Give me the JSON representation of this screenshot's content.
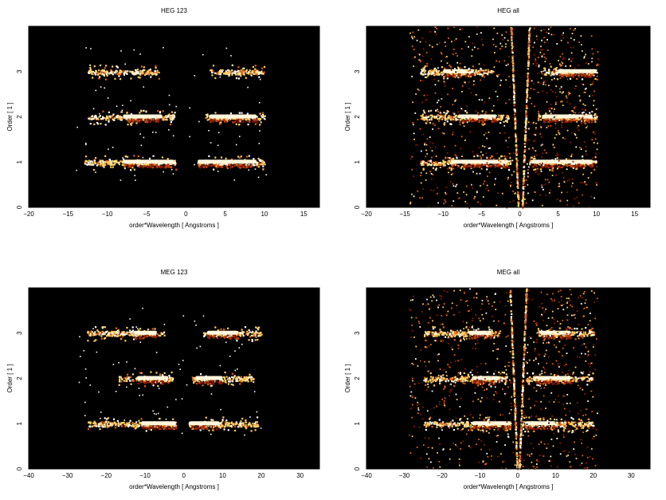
{
  "chart_data": [
    {
      "type": "heatmap",
      "title": "HEG 123",
      "xlabel": "order*Wavelength [ Angstroms ]",
      "ylabel": "Order [ 1 ]",
      "xlim": [
        -20,
        17
      ],
      "ylim": [
        0,
        4
      ],
      "xticks": [
        -20,
        -15,
        -10,
        -5,
        0,
        5,
        10,
        15
      ],
      "yticks": [
        0,
        1,
        2,
        3
      ],
      "colormap": [
        "#000000",
        "#8b1a00",
        "#e0601a",
        "#ffd060",
        "#ffffff"
      ],
      "bands": [
        {
          "order": 1,
          "segments": [
            [
              -13,
              -1.2
            ],
            [
              1.2,
              10
            ]
          ],
          "bright_core": [
            [
              -8,
              -1.5
            ],
            [
              1.5,
              9
            ]
          ]
        },
        {
          "order": 2,
          "segments": [
            [
              -12.5,
              -1.5
            ],
            [
              2.3,
              10
            ]
          ],
          "bright_core": [
            [
              -8,
              -3
            ],
            [
              3,
              9
            ]
          ]
        },
        {
          "order": 3,
          "segments": [
            [
              -12.5,
              -3.5
            ],
            [
              3,
              10
            ]
          ],
          "bright_core": []
        }
      ],
      "wedges": false
    },
    {
      "type": "heatmap",
      "title": "HEG all",
      "xlabel": "order*Wavelength [ Angstroms ]",
      "ylabel": "Order [ 1 ]",
      "xlim": [
        -20,
        17
      ],
      "ylim": [
        0,
        4
      ],
      "xticks": [
        -20,
        -15,
        -10,
        -5,
        0,
        5,
        10,
        15
      ],
      "yticks": [
        0,
        1,
        2,
        3
      ],
      "colormap": [
        "#000000",
        "#8b1a00",
        "#e0601a",
        "#ffd060",
        "#ffffff"
      ],
      "bands": [
        {
          "order": 1,
          "segments": [
            [
              -13,
              -1.2
            ],
            [
              1.2,
              10
            ]
          ],
          "bright_core": [
            [
              -9,
              -1.5
            ],
            [
              1.5,
              9.5
            ]
          ]
        },
        {
          "order": 2,
          "segments": [
            [
              -13,
              -1.5
            ],
            [
              2.3,
              10
            ]
          ],
          "bright_core": [
            [
              -8,
              -3
            ],
            [
              3,
              9.5
            ]
          ]
        },
        {
          "order": 3,
          "segments": [
            [
              -13,
              -3.5
            ],
            [
              3,
              10
            ]
          ],
          "bright_core": [
            [
              -10,
              -6
            ],
            [
              5,
              10
            ]
          ]
        }
      ],
      "wedges": true
    },
    {
      "type": "heatmap",
      "title": "MEG 123",
      "xlabel": "order*Wavelength [ Angstroms ]",
      "ylabel": "Order [ 1 ]",
      "xlim": [
        -40,
        35
      ],
      "ylim": [
        0,
        4
      ],
      "xticks": [
        -40,
        -30,
        -20,
        -10,
        0,
        10,
        20,
        30
      ],
      "yticks": [
        0,
        1,
        2,
        3
      ],
      "colormap": [
        "#000000",
        "#8b1a00",
        "#e0601a",
        "#ffd060",
        "#ffffff"
      ],
      "bands": [
        {
          "order": 1,
          "segments": [
            [
              -25,
              -2
            ],
            [
              1,
              19
            ]
          ],
          "bright_core": [
            [
              -11,
              -2
            ],
            [
              1.5,
              9
            ]
          ]
        },
        {
          "order": 2,
          "segments": [
            [
              -17,
              -3
            ],
            [
              2,
              18
            ]
          ],
          "bright_core": [
            [
              -12,
              -4
            ],
            [
              3,
              10
            ]
          ]
        },
        {
          "order": 3,
          "segments": [
            [
              -25,
              -5
            ],
            [
              5,
              20
            ]
          ],
          "bright_core": [
            [
              -13,
              -7
            ],
            [
              6,
              14
            ]
          ]
        }
      ],
      "wedges": false
    },
    {
      "type": "heatmap",
      "title": "MEG all",
      "xlabel": "order*Wavelength [ Angstroms ]",
      "ylabel": "Order [ 1 ]",
      "xlim": [
        -40,
        35
      ],
      "ylim": [
        0,
        4
      ],
      "xticks": [
        -40,
        -30,
        -20,
        -10,
        0,
        10,
        20,
        30
      ],
      "yticks": [
        0,
        1,
        2,
        3
      ],
      "colormap": [
        "#000000",
        "#8b1a00",
        "#e0601a",
        "#ffd060",
        "#ffffff"
      ],
      "bands": [
        {
          "order": 1,
          "segments": [
            [
              -25,
              -2
            ],
            [
              1,
              20
            ]
          ],
          "bright_core": [
            [
              -12,
              -2
            ],
            [
              2,
              10
            ]
          ]
        },
        {
          "order": 2,
          "segments": [
            [
              -25,
              -3
            ],
            [
              2,
              20
            ]
          ],
          "bright_core": [
            [
              -12,
              -5
            ],
            [
              4,
              14
            ]
          ]
        },
        {
          "order": 3,
          "segments": [
            [
              -25,
              -5
            ],
            [
              5,
              20
            ]
          ],
          "bright_core": [
            [
              -13,
              -7
            ],
            [
              6,
              14
            ]
          ]
        }
      ],
      "wedges": true
    }
  ]
}
